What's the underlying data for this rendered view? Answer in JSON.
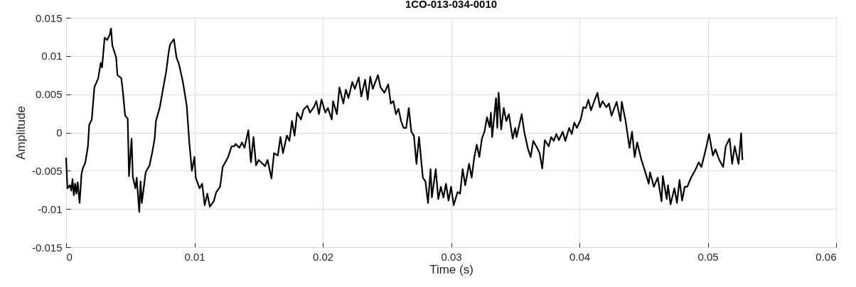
{
  "chart_data": {
    "type": "line",
    "title": "1CO-013-034-0010",
    "xlabel": "Time (s)",
    "ylabel": "Amplitude",
    "xlim": [
      0,
      0.06
    ],
    "xticks": [
      0,
      0.01,
      0.02,
      0.03,
      0.04,
      0.05,
      0.06
    ],
    "ylim": [
      -0.015,
      0.015
    ],
    "yticks": [
      -0.015,
      -0.01,
      -0.005,
      0,
      0.005,
      0.01,
      0.015
    ],
    "grid": true,
    "line_style": "solid",
    "marker": "none",
    "x": [
      0,
      0.0001,
      0.0003,
      0.0004,
      0.0005,
      0.0006,
      0.0007,
      0.0008,
      0.0009,
      0.00105,
      0.0012,
      0.0013,
      0.0015,
      0.0017,
      0.0018,
      0.002,
      0.0022,
      0.0025,
      0.0027,
      0.0028,
      0.003,
      0.0032,
      0.0034,
      0.0035,
      0.0036,
      0.0039,
      0.004,
      0.0043,
      0.0044,
      0.0046,
      0.0048,
      0.0049,
      0.0051,
      0.0052,
      0.0054,
      0.0055,
      0.0057,
      0.0058,
      0.0059,
      0.0062,
      0.0065,
      0.0067,
      0.0069,
      0.007,
      0.0073,
      0.0075,
      0.0078,
      0.008,
      0.0081,
      0.0084,
      0.0086,
      0.0088,
      0.0091,
      0.0094,
      0.0096,
      0.0098,
      0.01,
      0.0101,
      0.0104,
      0.0106,
      0.0108,
      0.011,
      0.0112,
      0.0115,
      0.0117,
      0.012,
      0.0122,
      0.0126,
      0.0129,
      0.0131,
      0.0132,
      0.0135,
      0.0137,
      0.0139,
      0.0142,
      0.0144,
      0.0146,
      0.0148,
      0.015,
      0.0152,
      0.0155,
      0.0157,
      0.016,
      0.0162,
      0.0165,
      0.0167,
      0.0169,
      0.0172,
      0.0174,
      0.0176,
      0.0178,
      0.018,
      0.0183,
      0.0185,
      0.0188,
      0.019,
      0.0193,
      0.0195,
      0.0197,
      0.0199,
      0.0202,
      0.0204,
      0.0207,
      0.0208,
      0.0211,
      0.0213,
      0.0216,
      0.0218,
      0.022,
      0.0223,
      0.0225,
      0.0228,
      0.023,
      0.0233,
      0.0235,
      0.0237,
      0.0239,
      0.0241,
      0.0243,
      0.0245,
      0.0248,
      0.0251,
      0.0253,
      0.0255,
      0.0257,
      0.0259,
      0.0261,
      0.0263,
      0.0265,
      0.0267,
      0.0269,
      0.0271,
      0.0273,
      0.0275,
      0.0278,
      0.028,
      0.0282,
      0.0284,
      0.0285,
      0.0288,
      0.029,
      0.0292,
      0.0294,
      0.0296,
      0.0298,
      0.03,
      0.0302,
      0.0305,
      0.0307,
      0.0309,
      0.0311,
      0.0314,
      0.0316,
      0.0318,
      0.032,
      0.0322,
      0.0324,
      0.0326,
      0.0328,
      0.033,
      0.0331,
      0.0332,
      0.0335,
      0.0336,
      0.0337,
      0.0339,
      0.0341,
      0.0343,
      0.0345,
      0.0348,
      0.035,
      0.0351,
      0.0355,
      0.0357,
      0.036,
      0.0362,
      0.0364,
      0.0367,
      0.0369,
      0.0371,
      0.0373,
      0.0376,
      0.0378,
      0.038,
      0.0382,
      0.0384,
      0.0387,
      0.0389,
      0.0392,
      0.0394,
      0.0396,
      0.0398,
      0.0401,
      0.0403,
      0.0405,
      0.0407,
      0.0409,
      0.0412,
      0.0414,
      0.0416,
      0.0418,
      0.0421,
      0.0423,
      0.0425,
      0.0429,
      0.0432,
      0.0433,
      0.0436,
      0.0439,
      0.0441,
      0.0443,
      0.0445,
      0.0448,
      0.0451,
      0.0454,
      0.0455,
      0.0458,
      0.0461,
      0.0464,
      0.0465,
      0.0468,
      0.0469,
      0.0471,
      0.0474,
      0.0476,
      0.0478,
      0.048,
      0.0482,
      0.0484,
      0.0487,
      0.049,
      0.0493,
      0.0495,
      0.0497,
      0.0499,
      0.0501,
      0.0504,
      0.0506,
      0.0509,
      0.0512,
      0.0514,
      0.0517,
      0.0519,
      0.0521,
      0.0524,
      0.0526,
      0.0527
    ],
    "series": [
      {
        "color": "#000000",
        "values": [
          -0.0033,
          -0.0073,
          -0.0069,
          -0.0076,
          -0.0061,
          -0.0082,
          -0.0067,
          -0.008,
          -0.0065,
          -0.0092,
          -0.0054,
          -0.0047,
          -0.0039,
          -0.0018,
          0.001,
          0.0017,
          0.0059,
          0.0071,
          0.0091,
          0.0085,
          0.0124,
          0.0121,
          0.0128,
          0.0136,
          0.0114,
          0.0098,
          0.0075,
          0.0071,
          0.0057,
          0.0022,
          0.0018,
          -0.0057,
          -0.0008,
          -0.0058,
          -0.0073,
          -0.0059,
          -0.0104,
          -0.0064,
          -0.0092,
          -0.0052,
          -0.0043,
          -0.0027,
          -0.0008,
          0.0015,
          0.0033,
          0.0052,
          0.008,
          0.0106,
          0.0115,
          0.0122,
          0.0098,
          0.0089,
          0.0066,
          0.0035,
          -0.0013,
          -0.005,
          -0.0032,
          -0.0059,
          -0.0073,
          -0.0067,
          -0.0095,
          -0.008,
          -0.0097,
          -0.009,
          -0.0078,
          -0.0071,
          -0.0045,
          -0.0033,
          -0.0018,
          -0.0018,
          -0.0015,
          -0.002,
          -0.0013,
          -0.002,
          0.0003,
          -0.0039,
          -0.0006,
          -0.0043,
          -0.0036,
          -0.0039,
          -0.0044,
          -0.0036,
          -0.006,
          -0.0027,
          -0.003,
          -0.0006,
          -0.0027,
          -0.0004,
          -0.0011,
          0.0015,
          -0.0004,
          0.0026,
          0.0017,
          0.003,
          0.0035,
          0.0026,
          0.0033,
          0.0041,
          0.0024,
          0.0043,
          0.0026,
          0.0032,
          0.0017,
          0.0041,
          0.0024,
          0.0059,
          0.0038,
          0.0056,
          0.0045,
          0.0066,
          0.0057,
          0.0072,
          0.0047,
          0.0069,
          0.0043,
          0.0073,
          0.0057,
          0.0066,
          0.0075,
          0.0059,
          0.0052,
          0.0063,
          0.0038,
          0.0041,
          0.0024,
          0.0031,
          0.0015,
          0.0006,
          0.0006,
          0.0032,
          0.0001,
          -0.0004,
          -0.0041,
          -0.0006,
          -0.0059,
          -0.0064,
          -0.0092,
          -0.0048,
          -0.0085,
          -0.0048,
          -0.0087,
          -0.0071,
          -0.0085,
          -0.0067,
          -0.0089,
          -0.0071,
          -0.0095,
          -0.0078,
          -0.008,
          -0.0048,
          -0.0069,
          -0.0041,
          -0.0059,
          -0.0033,
          -0.0016,
          -0.0032,
          -0.0008,
          0.0001,
          0.002,
          0.0007,
          0.0026,
          -0.0006,
          0.0045,
          0.0006,
          0.0052,
          0.0004,
          0.0032,
          0.0015,
          0.0024,
          -0.0008,
          0.0006,
          -0.0006,
          0.0024,
          0.0001,
          -0.0022,
          -0.0032,
          -0.0011,
          -0.002,
          -0.0027,
          -0.0047,
          -0.001,
          -0.0018,
          -0.0006,
          -0.0011,
          -0.0002,
          -0.001,
          0.0001,
          -0.0011,
          0.0006,
          -0.0002,
          0.0013,
          0.0006,
          0.0017,
          0.0033,
          0.0032,
          0.0043,
          0.0029,
          0.0043,
          0.0052,
          0.0033,
          0.0041,
          0.0033,
          0.0038,
          0.0022,
          0.004,
          0.0015,
          0.004,
          0.0015,
          -0.002,
          0.0001,
          -0.0032,
          -0.0013,
          -0.0034,
          -0.005,
          -0.0067,
          -0.0052,
          -0.0071,
          -0.0059,
          -0.009,
          -0.0057,
          -0.0087,
          -0.0069,
          -0.0094,
          -0.0073,
          -0.0092,
          -0.0062,
          -0.0089,
          -0.0071,
          -0.0071,
          -0.0059,
          -0.005,
          -0.0039,
          -0.0045,
          -0.0032,
          -0.0018,
          -0.0002,
          -0.003,
          -0.0022,
          -0.0036,
          -0.0045,
          -0.0018,
          -0.0008,
          -0.0041,
          -0.0018,
          -0.0041,
          -0.0001,
          -0.0036
        ]
      }
    ]
  }
}
